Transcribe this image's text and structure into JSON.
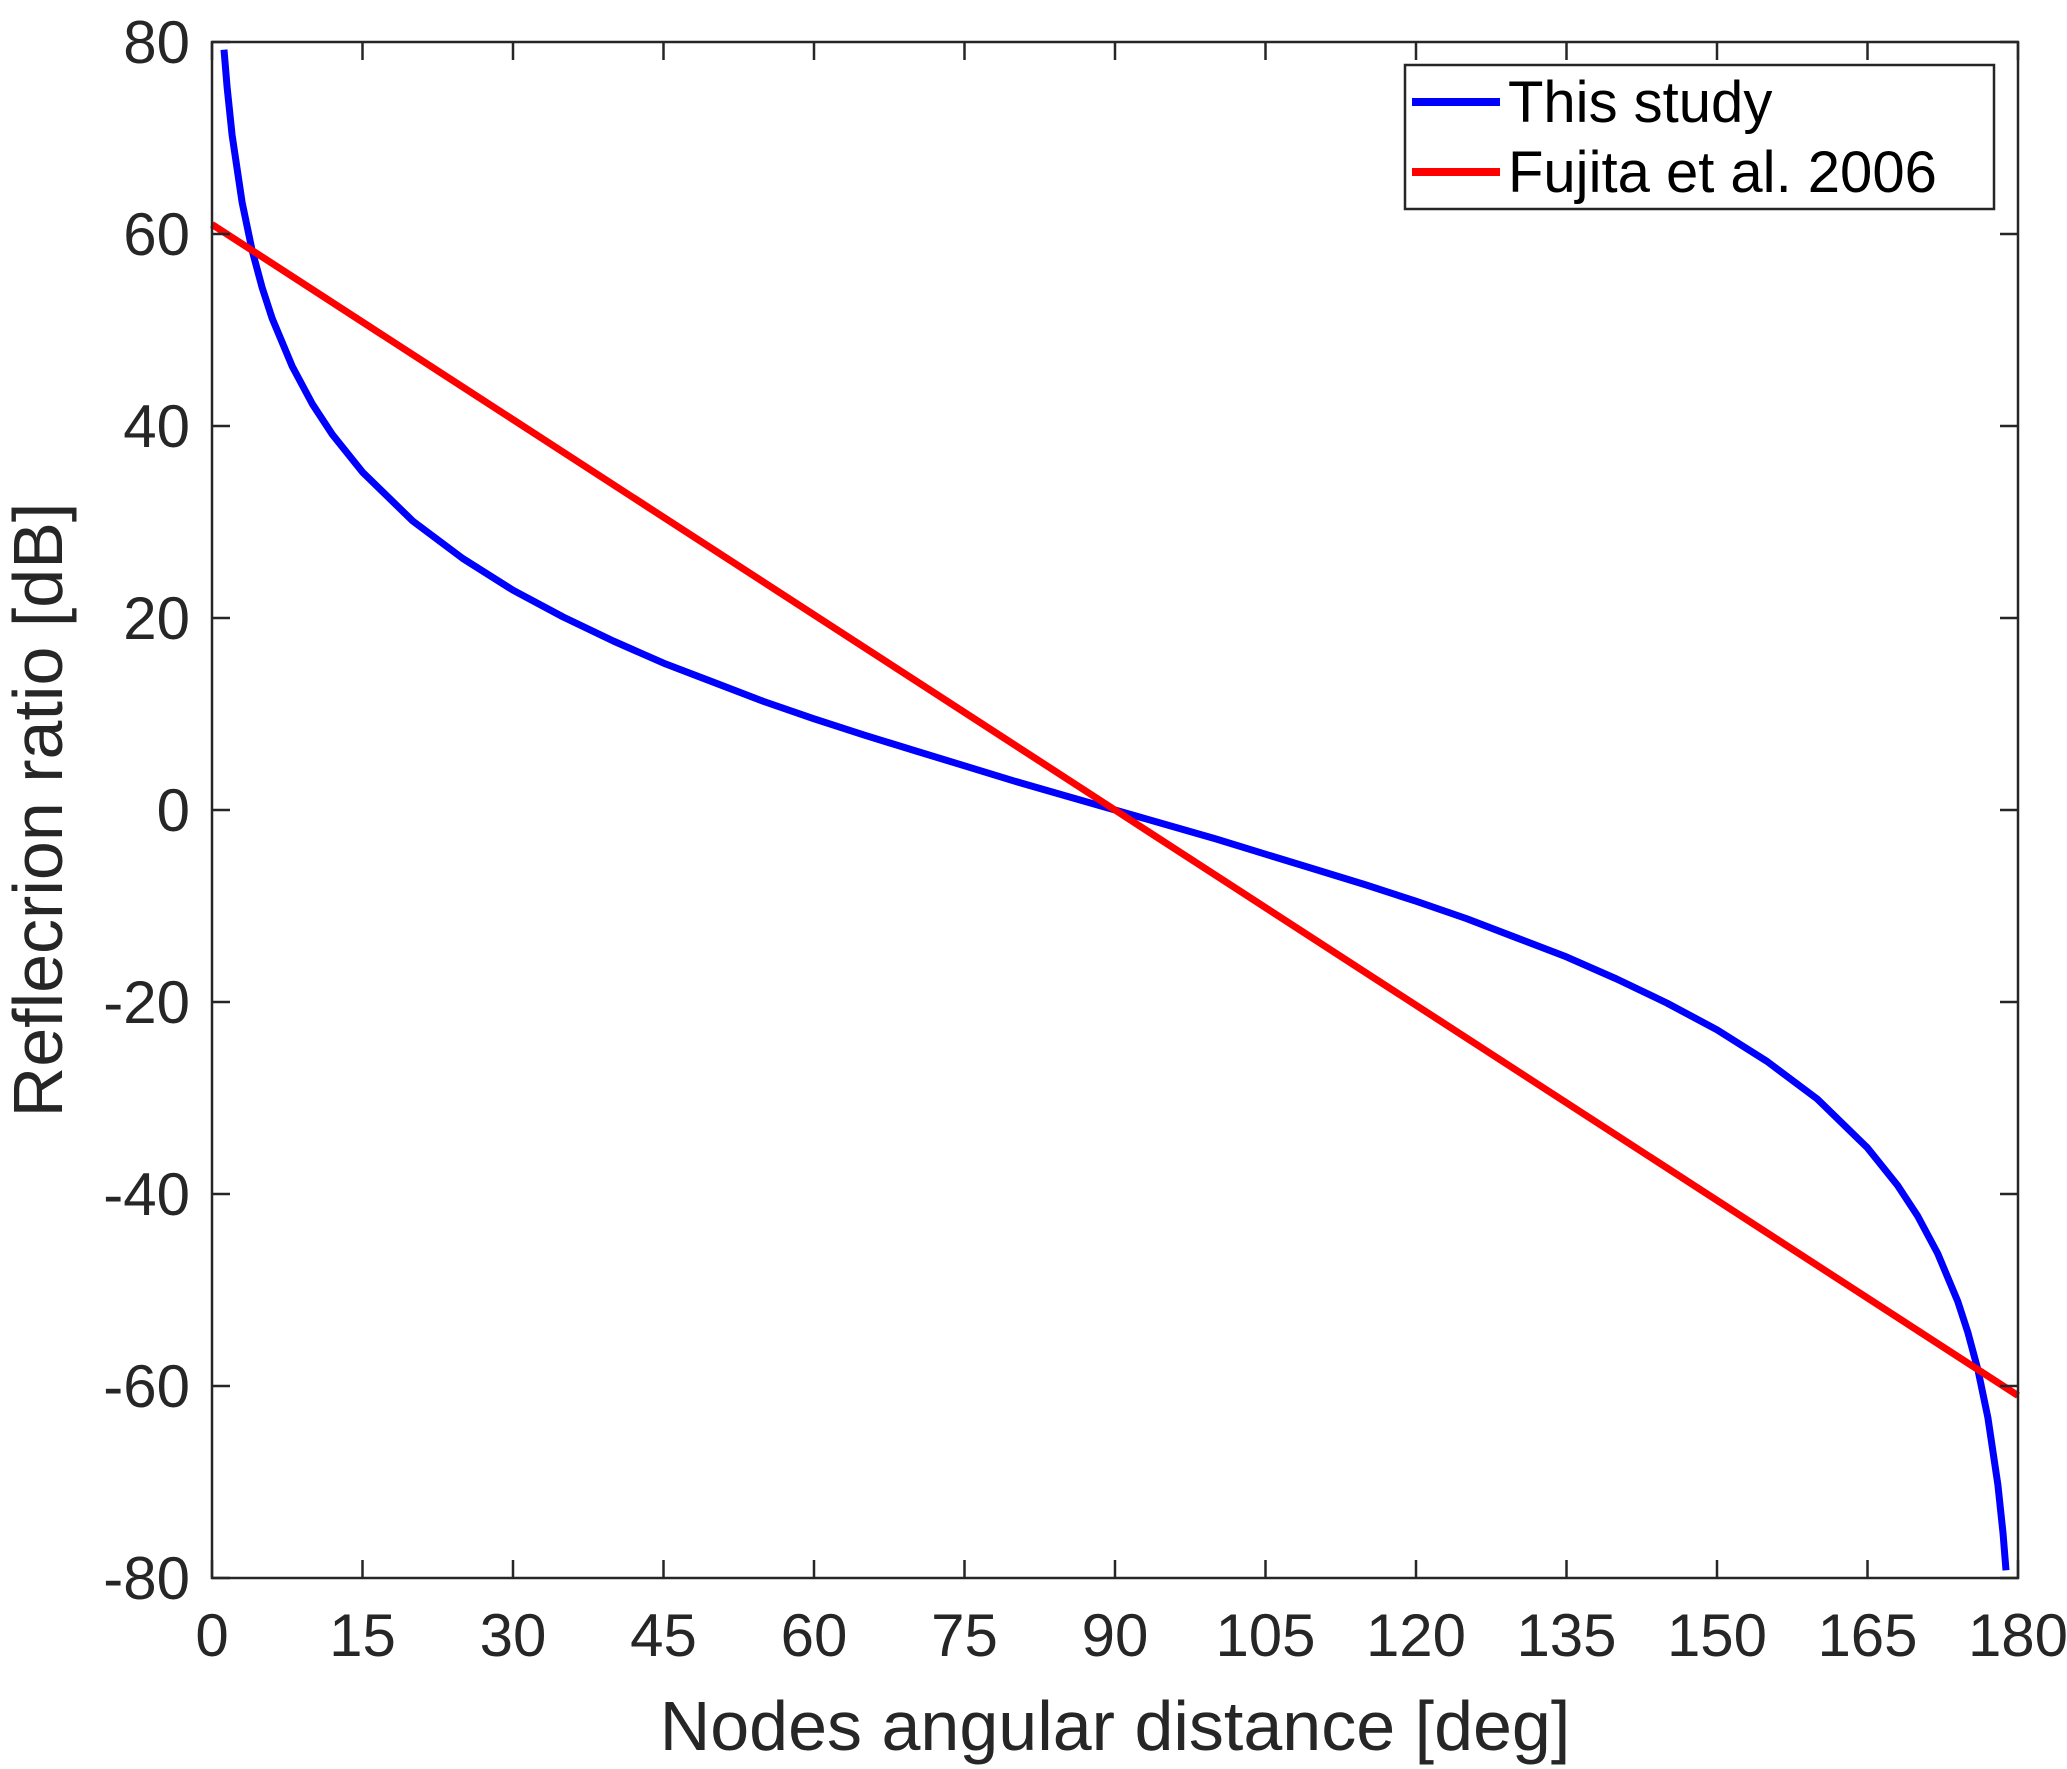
{
  "chart_data": {
    "type": "line",
    "title": "",
    "xlabel": "Nodes angular distance [deg]",
    "ylabel": "Reflecrion ratio [dB]",
    "xlim": [
      0,
      180
    ],
    "ylim": [
      -80,
      80
    ],
    "xticks": [
      0,
      15,
      30,
      45,
      60,
      75,
      90,
      105,
      120,
      135,
      150,
      165,
      180
    ],
    "yticks": [
      -80,
      -60,
      -40,
      -20,
      0,
      20,
      40,
      60,
      80
    ],
    "grid": false,
    "legend_position": "top-right",
    "series": [
      {
        "name": "This study",
        "color": "#0000ff",
        "x": [
          1.2,
          1.5,
          2,
          3,
          4,
          5,
          6,
          8,
          10,
          12,
          15,
          20,
          25,
          30,
          35,
          40,
          45,
          50,
          55,
          60,
          65,
          70,
          75,
          80,
          85,
          90,
          95,
          100,
          105,
          110,
          115,
          120,
          125,
          130,
          135,
          140,
          145,
          150,
          155,
          160,
          165,
          168,
          170,
          172,
          174,
          175,
          176,
          177,
          178,
          178.5,
          178.8
        ],
        "y": [
          79.2,
          75.3,
          70.3,
          63.3,
          58.3,
          54.4,
          51.2,
          46.2,
          42.3,
          39.1,
          35.2,
          30.1,
          26.2,
          22.9,
          20.1,
          17.6,
          15.3,
          13.3,
          11.3,
          9.5,
          7.8,
          6.2,
          4.6,
          3.0,
          1.5,
          0,
          -1.5,
          -3.0,
          -4.6,
          -6.2,
          -7.8,
          -9.5,
          -11.3,
          -13.3,
          -15.3,
          -17.6,
          -20.1,
          -22.9,
          -26.2,
          -30.1,
          -35.2,
          -39.1,
          -42.3,
          -46.2,
          -51.2,
          -54.4,
          -58.3,
          -63.3,
          -70.3,
          -75.3,
          -79.2
        ]
      },
      {
        "name": "Fujita et al. 2006",
        "color": "#ff0000",
        "x": [
          0,
          90,
          180
        ],
        "y": [
          61,
          0,
          -61
        ]
      }
    ]
  }
}
